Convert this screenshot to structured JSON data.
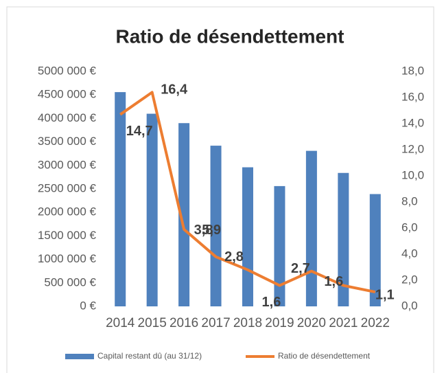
{
  "chart_data": {
    "type": "bar-line",
    "title": "Ratio de désendettement",
    "categories": [
      "2014",
      "2015",
      "2016",
      "2017",
      "2018",
      "2019",
      "2020",
      "2021",
      "2022"
    ],
    "series": [
      {
        "name": "Capital restant dû (au 31/12)",
        "type": "bar",
        "color": "#4f81bd",
        "values": [
          4560000,
          4100000,
          3900000,
          3420000,
          2960000,
          2560000,
          3310000,
          2840000,
          2390000
        ]
      },
      {
        "name": "Ratio de désendettement",
        "type": "line",
        "axis": "y2",
        "color": "#ed7d31",
        "values": [
          14.7,
          16.4,
          5.9,
          3.8,
          2.8,
          1.6,
          2.7,
          1.6,
          1.1
        ],
        "value_labels": [
          "14,7",
          "16,4",
          "5,9",
          "3,8",
          "2,8",
          "1,6",
          "2,7",
          "1,6",
          "1,1"
        ]
      }
    ],
    "ylim": [
      0,
      5000000
    ],
    "yticks": [
      {
        "value": 0,
        "label": "0 €"
      },
      {
        "value": 500000,
        "label": "500 000 €"
      },
      {
        "value": 1000000,
        "label": "1000 000 €"
      },
      {
        "value": 1500000,
        "label": "1500 000 €"
      },
      {
        "value": 2000000,
        "label": "2000 000 €"
      },
      {
        "value": 2500000,
        "label": "2500 000 €"
      },
      {
        "value": 3000000,
        "label": "3000 000 €"
      },
      {
        "value": 3500000,
        "label": "3500 000 €"
      },
      {
        "value": 4000000,
        "label": "4000 000 €"
      },
      {
        "value": 4500000,
        "label": "4500 000 €"
      },
      {
        "value": 5000000,
        "label": "5000 000 €"
      }
    ],
    "y2lim": [
      0,
      18
    ],
    "y2ticks": [
      {
        "value": 0,
        "label": "0,0"
      },
      {
        "value": 2,
        "label": "2,0"
      },
      {
        "value": 4,
        "label": "4,0"
      },
      {
        "value": 6,
        "label": "6,0"
      },
      {
        "value": 8,
        "label": "8,0"
      },
      {
        "value": 10,
        "label": "10,0"
      },
      {
        "value": 12,
        "label": "12,0"
      },
      {
        "value": 14,
        "label": "14,0"
      },
      {
        "value": 16,
        "label": "16,0"
      },
      {
        "value": 18,
        "label": "18,0"
      }
    ],
    "legend": "bottom"
  }
}
